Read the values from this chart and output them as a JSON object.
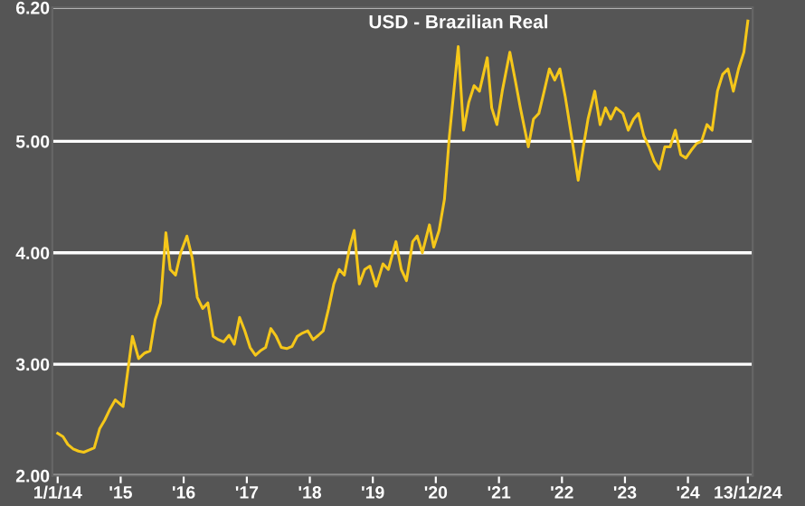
{
  "chart_data": {
    "type": "line",
    "title": "USD - Brazilian Real",
    "x": [
      "2014-01-01",
      "2014-02-01",
      "2014-03-01",
      "2014-04-01",
      "2014-05-01",
      "2014-06-01",
      "2014-07-01",
      "2014-08-01",
      "2014-09-01",
      "2014-10-01",
      "2014-11-01",
      "2014-12-01",
      "2015-01-15",
      "2015-03-10",
      "2015-04-15",
      "2015-05-20",
      "2015-06-20",
      "2015-07-20",
      "2015-08-20",
      "2015-09-20",
      "2015-10-15",
      "2015-11-15",
      "2015-12-15",
      "2016-01-20",
      "2016-02-20",
      "2016-03-20",
      "2016-04-20",
      "2016-05-20",
      "2016-06-20",
      "2016-07-20",
      "2016-08-20",
      "2016-09-20",
      "2016-10-20",
      "2016-11-20",
      "2016-12-20",
      "2017-01-20",
      "2017-02-20",
      "2017-03-20",
      "2017-04-20",
      "2017-05-20",
      "2017-06-20",
      "2017-07-20",
      "2017-08-20",
      "2017-09-20",
      "2017-10-20",
      "2017-11-20",
      "2017-12-20",
      "2018-01-20",
      "2018-02-20",
      "2018-03-20",
      "2018-04-20",
      "2018-05-20",
      "2018-06-20",
      "2018-07-20",
      "2018-08-20",
      "2018-09-15",
      "2018-10-15",
      "2018-11-15",
      "2018-12-15",
      "2019-01-20",
      "2019-03-01",
      "2019-04-01",
      "2019-05-15",
      "2019-06-15",
      "2019-07-15",
      "2019-08-20",
      "2019-09-15",
      "2019-10-15",
      "2019-11-25",
      "2019-12-20",
      "2020-01-20",
      "2020-02-20",
      "2020-03-20",
      "2020-05-10",
      "2020-06-10",
      "2020-07-10",
      "2020-08-10",
      "2020-09-10",
      "2020-10-25",
      "2020-11-20",
      "2020-12-20",
      "2021-01-20",
      "2021-03-05",
      "2021-04-05",
      "2021-05-05",
      "2021-06-20",
      "2021-07-20",
      "2021-08-20",
      "2021-09-20",
      "2021-10-20",
      "2021-11-20",
      "2021-12-20",
      "2022-01-20",
      "2022-02-20",
      "2022-04-05",
      "2022-05-05",
      "2022-06-01",
      "2022-07-10",
      "2022-08-10",
      "2022-09-10",
      "2022-10-10",
      "2022-11-10",
      "2022-12-20",
      "2023-01-20",
      "2023-02-20",
      "2023-03-20",
      "2023-04-20",
      "2023-05-20",
      "2023-06-20",
      "2023-07-20",
      "2023-08-20",
      "2023-09-20",
      "2023-10-20",
      "2023-11-20",
      "2023-12-20",
      "2024-01-20",
      "2024-02-20",
      "2024-03-20",
      "2024-04-20",
      "2024-05-20",
      "2024-06-20",
      "2024-07-20",
      "2024-08-20",
      "2024-09-20",
      "2024-10-20",
      "2024-11-20",
      "2024-12-13"
    ],
    "series": [
      {
        "color": "#f5c71a",
        "values": [
          2.38,
          2.35,
          2.28,
          2.24,
          2.22,
          2.21,
          2.23,
          2.25,
          2.42,
          2.5,
          2.6,
          2.68,
          2.62,
          3.25,
          3.05,
          3.1,
          3.12,
          3.4,
          3.55,
          4.18,
          3.85,
          3.8,
          4.0,
          4.15,
          3.95,
          3.6,
          3.5,
          3.55,
          3.25,
          3.22,
          3.2,
          3.26,
          3.18,
          3.42,
          3.3,
          3.15,
          3.08,
          3.12,
          3.15,
          3.32,
          3.25,
          3.15,
          3.14,
          3.16,
          3.25,
          3.28,
          3.3,
          3.22,
          3.26,
          3.3,
          3.5,
          3.72,
          3.85,
          3.8,
          4.05,
          4.2,
          3.72,
          3.85,
          3.88,
          3.7,
          3.9,
          3.85,
          4.1,
          3.85,
          3.75,
          4.1,
          4.15,
          4.0,
          4.25,
          4.05,
          4.2,
          4.48,
          5.05,
          5.85,
          5.1,
          5.35,
          5.5,
          5.45,
          5.75,
          5.3,
          5.15,
          5.45,
          5.8,
          5.55,
          5.3,
          4.95,
          5.2,
          5.25,
          5.45,
          5.65,
          5.55,
          5.65,
          5.4,
          5.1,
          4.65,
          4.95,
          5.2,
          5.45,
          5.15,
          5.3,
          5.2,
          5.3,
          5.25,
          5.1,
          5.2,
          5.25,
          5.05,
          4.95,
          4.82,
          4.75,
          4.95,
          4.95,
          5.1,
          4.88,
          4.85,
          4.92,
          4.98,
          5.0,
          5.15,
          5.1,
          5.45,
          5.6,
          5.65,
          5.45,
          5.65,
          5.8,
          6.08
        ]
      }
    ],
    "ylim": [
      2.0,
      6.2
    ],
    "yticks": [
      {
        "value": 2.0,
        "label": "2.00"
      },
      {
        "value": 3.0,
        "label": "3.00"
      },
      {
        "value": 4.0,
        "label": "4.00"
      },
      {
        "value": 5.0,
        "label": "5.00"
      },
      {
        "value": 6.2,
        "label": "6.20"
      }
    ],
    "xlim": [
      "2013-12-01",
      "2025-01-10"
    ],
    "xticks": [
      {
        "value": "2014-01-01",
        "label": "1/1/14"
      },
      {
        "value": "2015-01-01",
        "label": "'15"
      },
      {
        "value": "2016-01-01",
        "label": "'16"
      },
      {
        "value": "2017-01-01",
        "label": "'17"
      },
      {
        "value": "2018-01-01",
        "label": "'18"
      },
      {
        "value": "2019-01-01",
        "label": "'19"
      },
      {
        "value": "2020-01-01",
        "label": "'20"
      },
      {
        "value": "2021-01-01",
        "label": "'21"
      },
      {
        "value": "2022-01-01",
        "label": "'22"
      },
      {
        "value": "2023-01-01",
        "label": "'23"
      },
      {
        "value": "2024-01-01",
        "label": "'24"
      },
      {
        "value": "2024-12-13",
        "label": "13/12/24"
      }
    ],
    "grid": "y"
  }
}
